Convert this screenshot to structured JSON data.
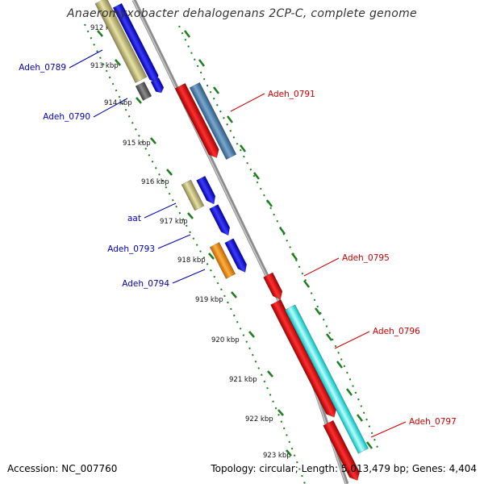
{
  "title": "Anaeromyxobacter dehalogenans 2CP-C, complete genome",
  "footer": {
    "accession": "Accession: NC_007760",
    "summary": "Topology: circular; Length: 5,013,479 bp; Genes: 4,404"
  },
  "ruler_ticks": [
    "912 kbp",
    "913 kbp",
    "914 kbp",
    "915 kbp",
    "916 kbp",
    "917 kbp",
    "918 kbp",
    "919 kbp",
    "920 kbp",
    "921 kbp",
    "922 kbp",
    "923 kbp"
  ],
  "gene_labels_reverse": [
    "Adeh_0789",
    "Adeh_0790",
    "aat",
    "Adeh_0793",
    "Adeh_0794"
  ],
  "gene_labels_forward": [
    "Adeh_0791",
    "Adeh_0795",
    "Adeh_0796",
    "Adeh_0797"
  ],
  "colors": {
    "reverse_label": "#0000b4",
    "forward_label": "#c80000",
    "backbone": "#8c8c8c",
    "tick_dots": "#1e7d1e",
    "cds_blue": "#0000ff",
    "cds_red": "#ff0000",
    "cds_khaki": "#bdb76b",
    "cds_steel": "#4682b4",
    "cds_cyan": "#00ffff",
    "cds_orange": "#ff8c00",
    "cds_grey": "#606060"
  }
}
